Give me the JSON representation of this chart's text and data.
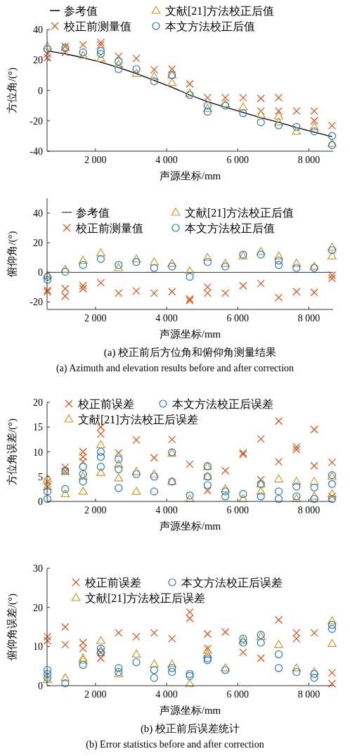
{
  "chart_data": [
    {
      "type": "scatter",
      "ylabel": "方位角/(°)",
      "xlabel": "声源坐标/mm",
      "xlim": [
        640,
        8680
      ],
      "ylim": [
        -40,
        40
      ],
      "yticks": [
        -40,
        -20,
        0,
        20,
        40
      ],
      "xticks": [
        {
          "value": 2000,
          "label": "2 000"
        },
        {
          "value": 4000,
          "label": "4 000"
        },
        {
          "value": 6000,
          "label": "6 000"
        },
        {
          "value": 8000,
          "label": "8 000"
        }
      ],
      "legend": "top",
      "grid": false,
      "series": [
        {
          "name": "参考值",
          "type": "line",
          "color": "#000000",
          "marker": "none",
          "line_style": "solid",
          "x": [
            650,
            1150,
            1650,
            2150,
            2650,
            3150,
            3650,
            4150,
            4650,
            5150,
            5650,
            6150,
            6650,
            7150,
            7650,
            8150,
            8650
          ],
          "values": [
            26,
            24,
            21.5,
            18.5,
            15,
            11,
            6.5,
            2,
            -3,
            -7.5,
            -11,
            -14.5,
            -18,
            -21,
            -24.5,
            -27.5,
            -30.5
          ]
        },
        {
          "name": "校正前测量值",
          "color": "#d95319",
          "marker": "cross",
          "x": [
            650,
            650,
            1150,
            1150,
            1650,
            2150,
            2150,
            2650,
            3150,
            3650,
            4150,
            4650,
            5150,
            5650,
            6150,
            6650,
            6650,
            7150,
            7150,
            7650,
            8150,
            8150,
            8650
          ],
          "values": [
            21.6,
            24,
            28.8,
            24.8,
            30,
            31.5,
            30,
            22.4,
            21,
            13.6,
            14,
            4.3,
            -4.8,
            -4.8,
            -4.8,
            -5.3,
            -13.6,
            -4.8,
            -13.6,
            -13.6,
            -13.6,
            -20,
            -23.2
          ]
        },
        {
          "name": "文献[21]方法校正后值",
          "color": "#c99a2e",
          "marker": "triangle",
          "x": [
            650,
            1150,
            1650,
            2150,
            2650,
            3150,
            3650,
            4150,
            4150,
            4650,
            5150,
            5650,
            6150,
            6650,
            7150,
            7150,
            7650,
            8150,
            8650
          ],
          "values": [
            29,
            28,
            23,
            21,
            17,
            11,
            9,
            5,
            10,
            -2,
            -12,
            -9,
            -11,
            -16,
            -17,
            -21,
            -27,
            -24,
            -35
          ]
        },
        {
          "name": "本文方法校正后值",
          "color": "#2a7ab8",
          "marker": "circle",
          "x": [
            650,
            1150,
            1650,
            2150,
            2150,
            2650,
            2650,
            3150,
            3650,
            4150,
            4650,
            5150,
            5150,
            5650,
            6150,
            6650,
            7150,
            7650,
            8150,
            8650,
            8650
          ],
          "values": [
            27,
            28,
            25,
            24,
            26,
            19,
            14,
            14,
            6,
            10,
            -3,
            -10,
            -14,
            -10,
            -15,
            -21,
            -23,
            -24,
            -27,
            -30,
            -36
          ]
        }
      ]
    },
    {
      "type": "scatter",
      "ylabel": "俯仰角/(°)",
      "xlabel": "声源坐标/mm",
      "xlim": [
        640,
        8680
      ],
      "ylim": [
        -25,
        50
      ],
      "yticks": [
        -20,
        0,
        20,
        40
      ],
      "xticks": [
        {
          "value": 2000,
          "label": "2 000"
        },
        {
          "value": 4000,
          "label": "4 000"
        },
        {
          "value": 6000,
          "label": "6 000"
        },
        {
          "value": 8000,
          "label": "8 000"
        }
      ],
      "legend": "top",
      "grid": false,
      "annotations": [
        "(a) 校正前后方位角和俯仰角测量结果",
        "(a) Azimuth and elevation results before and after correction"
      ],
      "series": [
        {
          "name": "参考值",
          "type": "line",
          "color": "#555555",
          "marker": "none",
          "line_style": "solid",
          "x": [
            640,
            8680
          ],
          "values": [
            0,
            0
          ]
        },
        {
          "name": "校正前测量值",
          "color": "#d95319",
          "marker": "cross",
          "x": [
            650,
            650,
            1150,
            1150,
            1650,
            1650,
            2150,
            2650,
            3150,
            3650,
            4150,
            4650,
            4650,
            5150,
            5150,
            5650,
            6150,
            6650,
            7150,
            7650,
            8150,
            8650,
            8650
          ],
          "values": [
            -12,
            -13,
            -11,
            -16,
            -9,
            -11,
            -7,
            -14,
            -12.5,
            -14,
            -13,
            -18,
            -19,
            -10,
            -14,
            -14,
            -9,
            -7.5,
            -17,
            -13,
            -13.5,
            -2,
            -4
          ]
        },
        {
          "name": "文献[21]方法校正后值",
          "color": "#c99a2e",
          "marker": "triangle",
          "x": [
            650,
            1150,
            1650,
            2150,
            2650,
            3150,
            3650,
            4150,
            4650,
            5150,
            5650,
            6150,
            6650,
            7150,
            7650,
            8150,
            8650,
            8650
          ],
          "values": [
            -2,
            2,
            8,
            13,
            3,
            9,
            7,
            6,
            1,
            10,
            6,
            11,
            14,
            11,
            6,
            4,
            17,
            11
          ]
        },
        {
          "name": "本文方法校正后值",
          "color": "#2a7ab8",
          "marker": "circle",
          "x": [
            650,
            650,
            1150,
            1650,
            2150,
            2650,
            3150,
            3650,
            4150,
            4650,
            5150,
            5650,
            6150,
            6650,
            7150,
            7150,
            7650,
            8150,
            8650
          ],
          "values": [
            -3,
            -5,
            0.5,
            5,
            9,
            5,
            7,
            3,
            4,
            -3,
            7,
            4,
            12,
            12,
            8,
            5,
            3,
            3,
            15
          ]
        }
      ]
    },
    {
      "type": "scatter",
      "ylabel": "方位角误差/(°)",
      "xlabel": "声源坐标/mm",
      "xlim": [
        640,
        8680
      ],
      "ylim": [
        0,
        20
      ],
      "yticks": [
        0,
        5,
        10,
        15,
        20
      ],
      "xticks": [
        {
          "value": 2000,
          "label": "2 000"
        },
        {
          "value": 4000,
          "label": "4 000"
        },
        {
          "value": 6000,
          "label": "6 000"
        },
        {
          "value": 8000,
          "label": "8 000"
        }
      ],
      "legend": "top",
      "grid": false,
      "series": [
        {
          "name": "校正前误差",
          "color": "#d95319",
          "marker": "cross",
          "x": [
            650,
            650,
            1150,
            1150,
            1650,
            1650,
            1650,
            2150,
            2150,
            2650,
            3150,
            3650,
            4150,
            4650,
            5150,
            5650,
            6150,
            6150,
            6650,
            6650,
            7150,
            7150,
            7650,
            7650,
            8150,
            8150,
            8650,
            8650
          ],
          "values": [
            3,
            4,
            6.9,
            6,
            10,
            9,
            8,
            15,
            13.6,
            9.8,
            12.4,
            8.8,
            12.5,
            7.5,
            2.2,
            6.2,
            9.8,
            9.5,
            12.6,
            4.4,
            16.2,
            8,
            11,
            10.5,
            14.5,
            7.2,
            7.9,
            1
          ]
        },
        {
          "name": "文献[21]方法校正后误差",
          "color": "#c99a2e",
          "marker": "triangle",
          "x": [
            650,
            650,
            1150,
            1150,
            1650,
            1650,
            2150,
            2150,
            2650,
            2650,
            3150,
            3150,
            3650,
            4150,
            4150,
            4650,
            5150,
            5150,
            5650,
            6150,
            6650,
            6650,
            7150,
            7650,
            7650,
            8150,
            8150,
            8650,
            8650
          ],
          "values": [
            4.5,
            3,
            6,
            1.5,
            5,
            2,
            11.4,
            5.8,
            7.5,
            4.7,
            6,
            2,
            5.5,
            9.7,
            4,
            0.5,
            7,
            5,
            2.5,
            0.5,
            2,
            3.5,
            4.5,
            4,
            0.5,
            4,
            1,
            5,
            1.5
          ]
        },
        {
          "name": "本文方法校正后误差",
          "color": "#2a7ab8",
          "marker": "circle",
          "x": [
            650,
            650,
            1150,
            1150,
            1650,
            1650,
            1650,
            2150,
            2150,
            2150,
            2650,
            2650,
            2650,
            3150,
            3650,
            3650,
            4150,
            4150,
            4650,
            5150,
            5150,
            5150,
            5650,
            5650,
            6150,
            6650,
            6650,
            7150,
            7150,
            7650,
            7650,
            8150,
            8150,
            8650,
            8650,
            8650
          ],
          "values": [
            2,
            0.5,
            6.2,
            2.5,
            7,
            5.5,
            4,
            10,
            9,
            7,
            8.5,
            6.5,
            2.7,
            5.5,
            5,
            2,
            9.9,
            4,
            1.2,
            7.1,
            5,
            3.3,
            2,
            1,
            1.5,
            3.5,
            1,
            2,
            0.5,
            3,
            1,
            2.8,
            0.5,
            5.3,
            3.5,
            0.5
          ]
        }
      ]
    },
    {
      "type": "scatter",
      "ylabel": "俯仰角误差/(°)",
      "xlabel": "声源坐标/mm",
      "xlim": [
        640,
        8680
      ],
      "ylim": [
        0,
        30
      ],
      "yticks": [
        0,
        10,
        20,
        30
      ],
      "xticks": [
        {
          "value": 2000,
          "label": "2 000"
        },
        {
          "value": 4000,
          "label": "4 000"
        },
        {
          "value": 6000,
          "label": "6 000"
        },
        {
          "value": 8000,
          "label": "8 000"
        }
      ],
      "legend": "top",
      "grid": false,
      "annotations": [
        "(b) 校正前后误差统计",
        "(b) Error statistics before and after correction"
      ],
      "series": [
        {
          "name": "校正前误差",
          "color": "#d95319",
          "marker": "cross",
          "x": [
            650,
            650,
            1150,
            1150,
            1650,
            1650,
            2150,
            2150,
            2650,
            3150,
            3650,
            4150,
            4650,
            4650,
            5150,
            5150,
            5650,
            6150,
            6650,
            7150,
            7650,
            7650,
            8150,
            8650,
            8650
          ],
          "values": [
            12.5,
            11.5,
            15,
            10.5,
            11,
            9.5,
            8.5,
            7,
            13.5,
            12.5,
            13.5,
            12,
            18.8,
            17.2,
            13.2,
            9.5,
            13.7,
            8.5,
            7,
            16.8,
            13.5,
            12,
            13.5,
            3.3,
            0.5
          ]
        },
        {
          "name": "文献[21]方法校正后误差",
          "color": "#c99a2e",
          "marker": "triangle",
          "x": [
            650,
            1150,
            1650,
            1650,
            2150,
            2150,
            2650,
            3150,
            3650,
            4150,
            4650,
            5150,
            5150,
            5650,
            6150,
            6650,
            7150,
            7650,
            8150,
            8650,
            8650
          ],
          "values": [
            1.5,
            2,
            7,
            6.5,
            11.5,
            9,
            3,
            8,
            5.5,
            5.5,
            0.5,
            9,
            8,
            4.5,
            11.5,
            12.5,
            10.5,
            4.5,
            3.5,
            16.5,
            10.7
          ]
        },
        {
          "name": "本文方法校正后误差",
          "color": "#2a7ab8",
          "marker": "circle",
          "x": [
            650,
            650,
            650,
            1150,
            1650,
            2150,
            2150,
            2650,
            2650,
            3150,
            3650,
            3650,
            4150,
            4150,
            4650,
            4650,
            5150,
            5150,
            5650,
            6150,
            6150,
            6650,
            6650,
            7150,
            7150,
            7650,
            8150,
            8150,
            8650,
            8650
          ],
          "values": [
            4,
            3,
            2,
            0.6,
            5.3,
            9.5,
            8.5,
            4.5,
            3.5,
            6,
            4,
            2,
            4.5,
            3.5,
            3,
            2.5,
            7,
            6.5,
            4,
            12,
            11,
            13,
            11,
            8,
            4.5,
            3.5,
            3,
            2,
            15.5,
            14.5
          ]
        }
      ]
    }
  ]
}
